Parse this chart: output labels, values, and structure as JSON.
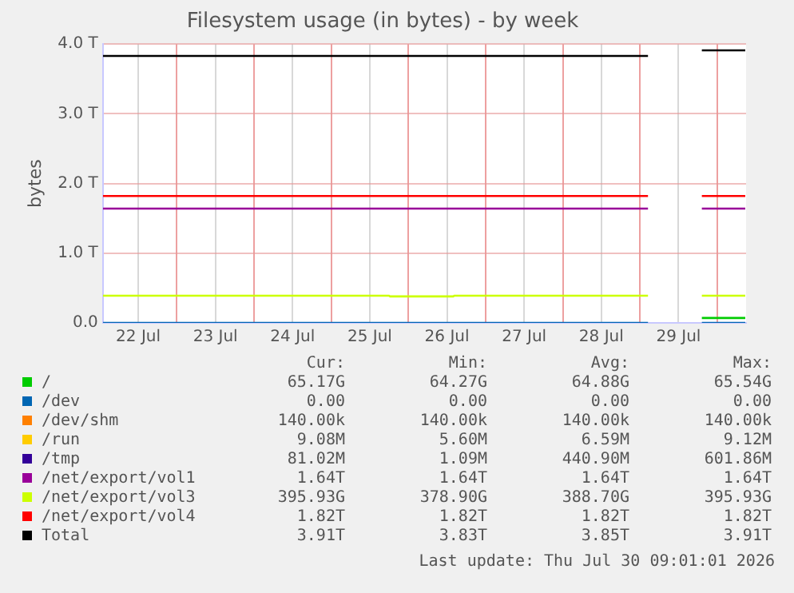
{
  "chart_data": {
    "type": "line",
    "title": "Filesystem usage (in bytes) - by week",
    "ylabel": "bytes",
    "x": [
      "2026-07-22T01:00",
      "2026-07-25T18:00",
      "2026-07-25T18:15",
      "2026-07-26T14:00",
      "2026-07-26T14:15",
      "2026-07-29T02:30",
      "2026-07-29T12:00",
      "2026-07-29T19:15",
      "2026-07-30T08:45"
    ],
    "xlim": [
      "2026-07-22T01:00",
      "2026-07-30T09:00"
    ],
    "xticks": [
      {
        "value": "2026-07-22T12:00",
        "label": "22 Jul"
      },
      {
        "value": "2026-07-23T00:00",
        "label": null
      },
      {
        "value": "2026-07-23T12:00",
        "label": "23 Jul"
      },
      {
        "value": "2026-07-24T00:00",
        "label": null
      },
      {
        "value": "2026-07-24T12:00",
        "label": "24 Jul"
      },
      {
        "value": "2026-07-25T00:00",
        "label": null
      },
      {
        "value": "2026-07-25T12:00",
        "label": "25 Jul"
      },
      {
        "value": "2026-07-26T00:00",
        "label": null
      },
      {
        "value": "2026-07-26T12:00",
        "label": "26 Jul"
      },
      {
        "value": "2026-07-27T00:00",
        "label": null
      },
      {
        "value": "2026-07-27T12:00",
        "label": "27 Jul"
      },
      {
        "value": "2026-07-28T00:00",
        "label": null
      },
      {
        "value": "2026-07-28T12:00",
        "label": "28 Jul"
      },
      {
        "value": "2026-07-29T00:00",
        "label": null
      },
      {
        "value": "2026-07-29T12:00",
        "label": "29 Jul"
      },
      {
        "value": "2026-07-30T00:00",
        "label": null
      }
    ],
    "ylim": [
      0,
      4
    ],
    "yticks": [
      {
        "value": 0,
        "label": "0.0"
      },
      {
        "value": 1,
        "label": "1.0 T"
      },
      {
        "value": 2,
        "label": "2.0 T"
      },
      {
        "value": 3,
        "label": "3.0 T"
      },
      {
        "value": 4,
        "label": "4.0 T"
      }
    ],
    "grid": true,
    "legend": "bottom",
    "marker": "none",
    "line_style": "solid",
    "series": [
      {
        "name": "/",
        "color": "#00cc00",
        "values": [
          null,
          null,
          null,
          null,
          null,
          null,
          null,
          0.07,
          0.07
        ]
      },
      {
        "name": "/dev",
        "color": "#0066b3",
        "values": [
          0,
          0,
          0,
          0,
          0,
          0,
          null,
          0,
          0
        ]
      },
      {
        "name": "/dev/shm",
        "color": "#ff8000",
        "values": [
          null,
          null,
          null,
          null,
          null,
          null,
          null,
          null,
          null
        ]
      },
      {
        "name": "/run",
        "color": "#ffcc00",
        "values": [
          null,
          null,
          null,
          null,
          null,
          null,
          null,
          null,
          null
        ]
      },
      {
        "name": "/tmp",
        "color": "#330099",
        "values": [
          null,
          null,
          null,
          null,
          null,
          null,
          null,
          null,
          null
        ]
      },
      {
        "name": "/net/export/vol1",
        "color": "#990099",
        "values": [
          1.64,
          1.64,
          1.64,
          1.64,
          1.64,
          1.64,
          null,
          1.64,
          1.64
        ]
      },
      {
        "name": "/net/export/vol3",
        "color": "#ccff00",
        "values": [
          0.39,
          0.39,
          0.38,
          0.38,
          0.39,
          0.39,
          null,
          0.39,
          0.39
        ]
      },
      {
        "name": "/net/export/vol4",
        "color": "#ff0000",
        "values": [
          1.82,
          1.82,
          1.82,
          1.82,
          1.82,
          1.82,
          null,
          1.82,
          1.82
        ]
      },
      {
        "name": "Total",
        "color": "#000000",
        "values": [
          3.83,
          3.83,
          3.83,
          3.83,
          3.83,
          3.83,
          null,
          3.91,
          3.91
        ]
      }
    ],
    "annotations": [
      "Cur:",
      "Min:",
      "Avg:",
      "Max:",
      "65.17G",
      "64.27G",
      "64.88G",
      "65.54G",
      "0.00",
      "0.00",
      "0.00",
      "0.00",
      "140.00k",
      "140.00k",
      "140.00k",
      "140.00k",
      "9.08M",
      "5.60M",
      "6.59M",
      "9.12M",
      "81.02M",
      "1.09M",
      "440.90M",
      "601.86M",
      "1.64T",
      "1.64T",
      "1.64T",
      "1.64T",
      "395.93G",
      "378.90G",
      "388.70G",
      "395.93G",
      "1.82T",
      "1.82T",
      "1.82T",
      "1.82T",
      "3.91T",
      "3.83T",
      "3.85T",
      "3.91T",
      "Last update: Thu Jul 30 09:01:01 2026"
    ]
  }
}
